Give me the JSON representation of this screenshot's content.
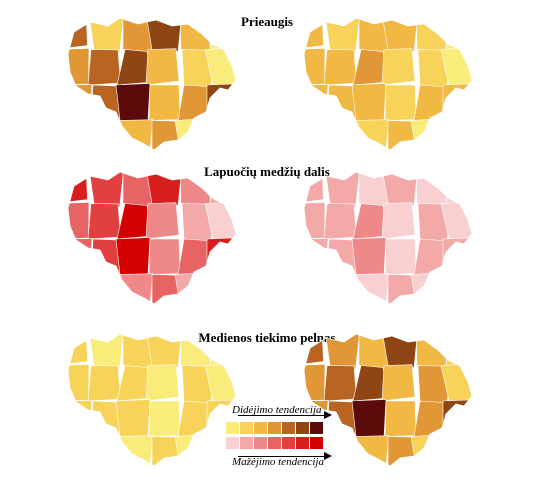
{
  "panels": [
    {
      "title": "Prieaugis"
    },
    {
      "title": "Lapuočių medžių dalis"
    },
    {
      "title": "Medienos tiekimo pelnas"
    }
  ],
  "legend": {
    "increase_label": "Didėjimo tendencija",
    "decrease_label": "Mažėjimo tendencija",
    "increase_colors": [
      "#f9ec7b",
      "#f7d35a",
      "#f1b843",
      "#e19735",
      "#b96521",
      "#8f4514",
      "#5c0a0a"
    ],
    "decrease_colors": [
      "#f8d0d0",
      "#f4a9a9",
      "#ef8888",
      "#e86363",
      "#e24040",
      "#d81d1d",
      "#d40000"
    ]
  },
  "maps": [
    {
      "palette": "yellow",
      "tones": [
        4,
        1,
        3,
        5,
        2,
        0,
        3,
        4,
        5,
        2,
        1,
        0,
        3,
        4,
        6,
        2,
        3,
        5,
        4,
        1,
        2,
        3,
        0,
        5
      ]
    },
    {
      "palette": "yellow",
      "tones": [
        2,
        1,
        2,
        2,
        1,
        0,
        2,
        2,
        3,
        1,
        1,
        0,
        2,
        2,
        2,
        1,
        2,
        2,
        2,
        1,
        1,
        2,
        0,
        2
      ]
    },
    {
      "palette": "red",
      "tones": [
        5,
        4,
        3,
        5,
        2,
        1,
        3,
        4,
        6,
        2,
        1,
        0,
        3,
        4,
        6,
        2,
        3,
        5,
        4,
        2,
        2,
        3,
        1,
        5
      ]
    },
    {
      "palette": "red",
      "tones": [
        1,
        1,
        0,
        1,
        0,
        0,
        1,
        1,
        2,
        0,
        1,
        0,
        1,
        1,
        2,
        0,
        1,
        1,
        1,
        0,
        0,
        1,
        0,
        1
      ]
    },
    {
      "palette": "yellow",
      "tones": [
        1,
        0,
        1,
        1,
        0,
        0,
        1,
        1,
        1,
        0,
        1,
        0,
        1,
        1,
        1,
        0,
        1,
        1,
        1,
        0,
        0,
        1,
        0,
        1
      ]
    },
    {
      "palette": "yellow",
      "tones": [
        4,
        3,
        2,
        5,
        2,
        1,
        3,
        4,
        5,
        2,
        3,
        1,
        3,
        4,
        6,
        2,
        3,
        5,
        4,
        3,
        2,
        3,
        1,
        5
      ]
    }
  ]
}
